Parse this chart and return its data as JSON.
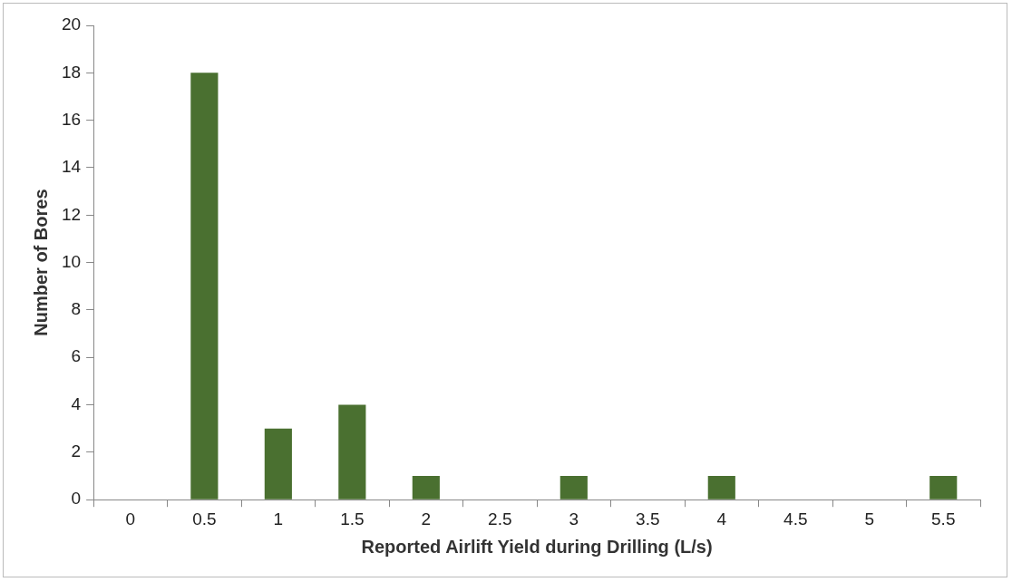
{
  "chart_data": {
    "type": "bar",
    "xlabel": "Reported Airlift Yield during Drilling (L/s)",
    "ylabel": "Number of Bores",
    "categories": [
      "0",
      "0.5",
      "1",
      "1.5",
      "2",
      "2.5",
      "3",
      "3.5",
      "4",
      "4.5",
      "5",
      "5.5"
    ],
    "values": [
      0,
      18,
      3,
      4,
      1,
      0,
      1,
      0,
      1,
      0,
      0,
      1
    ],
    "color": "#4a7030",
    "ylim": [
      0,
      20
    ],
    "yticks": [
      0,
      2,
      4,
      6,
      8,
      10,
      12,
      14,
      16,
      18,
      20
    ],
    "grid": false,
    "legend": false
  }
}
